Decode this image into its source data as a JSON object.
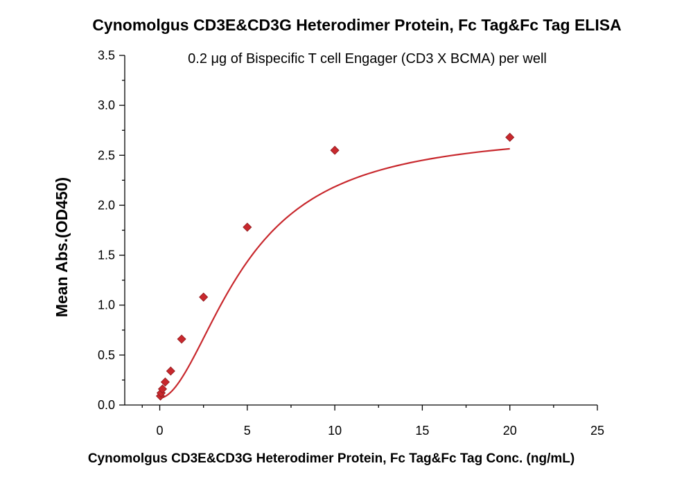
{
  "chart_data": {
    "type": "scatter",
    "title": "Cynomolgus CD3E&CD3G Heterodimer Protein, Fc Tag&Fc Tag ELISA",
    "subtitle": "0.2 μg of Bispecific T cell Engager (CD3 X BCMA)  per well",
    "xlabel": "Cynomolgus CD3E&CD3G Heterodimer Protein, Fc Tag&Fc Tag Conc. (ng/mL)",
    "ylabel": "Mean Abs.(OD450)",
    "xlim": [
      -2,
      25
    ],
    "ylim": [
      0,
      3.5
    ],
    "xticks": [
      0,
      5,
      10,
      15,
      20,
      25
    ],
    "xtick_labels": [
      "0",
      "5",
      "10",
      "15",
      "20",
      "25"
    ],
    "yticks": [
      0,
      0.5,
      1.0,
      1.5,
      2.0,
      2.5,
      3.0,
      3.5
    ],
    "ytick_labels": [
      "0.0",
      "0.5",
      "1.0",
      "1.5",
      "2.0",
      "2.5",
      "3.0",
      "3.5"
    ],
    "grid": false,
    "series": [
      {
        "marker": "diamond",
        "color": "#c8282d",
        "x": [
          0.0391,
          0.0781,
          0.1563,
          0.3125,
          0.625,
          1.25,
          2.5,
          5,
          10,
          20
        ],
        "y": [
          0.09,
          0.12,
          0.16,
          0.23,
          0.34,
          0.66,
          1.08,
          1.78,
          2.55,
          2.68
        ]
      }
    ],
    "fit_curve": {
      "type": "4PL",
      "color": "#c8282d",
      "bottom": 0.07,
      "top": 2.75,
      "ec50": 4.9,
      "hill": 1.85
    }
  }
}
